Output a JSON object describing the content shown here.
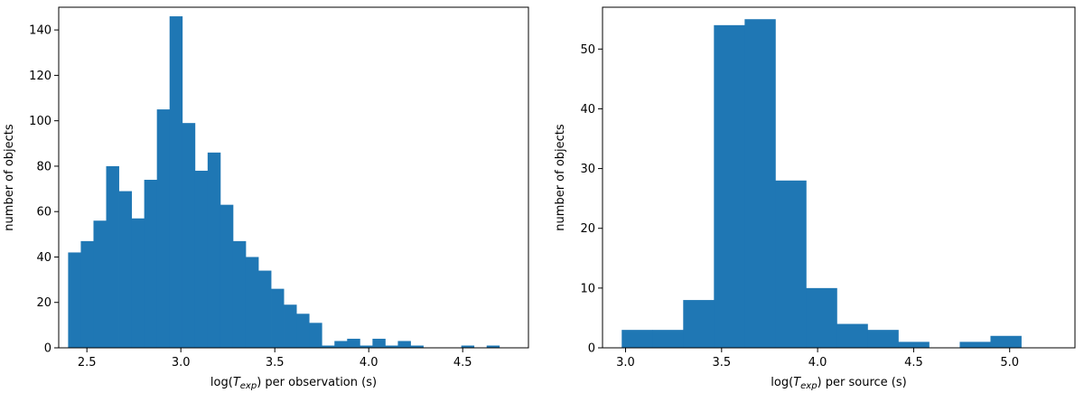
{
  "chart_data": [
    {
      "type": "bar",
      "title": "",
      "xlabel_parts": [
        "log(",
        "T",
        "exp",
        ") per observation (s)"
      ],
      "ylabel": "number of objects",
      "xlim": [
        2.35,
        4.85
      ],
      "ylim": [
        0,
        150
      ],
      "xticks": [
        2.5,
        3.0,
        3.5,
        4.0,
        4.5
      ],
      "xtick_labels": [
        "2.5",
        "3.0",
        "3.5",
        "4.0",
        "4.5"
      ],
      "yticks": [
        0,
        20,
        40,
        60,
        80,
        100,
        120,
        140
      ],
      "ytick_labels": [
        "0",
        "20",
        "40",
        "60",
        "80",
        "100",
        "120",
        "140"
      ],
      "bar_color": "#1f77b4",
      "grid": false,
      "bin_start": 2.4,
      "bin_width": 0.0675,
      "values": [
        42,
        47,
        56,
        80,
        69,
        57,
        74,
        105,
        146,
        99,
        78,
        86,
        63,
        47,
        40,
        34,
        26,
        19,
        15,
        11,
        1,
        3,
        4,
        1,
        4,
        1,
        3,
        1,
        0,
        0,
        0,
        1,
        0,
        1
      ]
    },
    {
      "type": "bar",
      "title": "",
      "xlabel_parts": [
        "log(",
        "T",
        "exp",
        ") per source (s)"
      ],
      "ylabel": "number of objects",
      "xlim": [
        2.88,
        5.34
      ],
      "ylim": [
        0,
        57
      ],
      "xticks": [
        3.0,
        3.5,
        4.0,
        4.5,
        5.0
      ],
      "xtick_labels": [
        "3.0",
        "3.5",
        "4.0",
        "4.5",
        "5.0"
      ],
      "yticks": [
        0,
        10,
        20,
        30,
        40,
        50
      ],
      "ytick_labels": [
        "0",
        "10",
        "20",
        "30",
        "40",
        "50"
      ],
      "bar_color": "#1f77b4",
      "grid": false,
      "bin_start": 2.98,
      "bin_width": 0.16,
      "values": [
        3,
        3,
        8,
        54,
        55,
        28,
        10,
        4,
        3,
        1,
        0,
        1,
        2
      ]
    }
  ]
}
